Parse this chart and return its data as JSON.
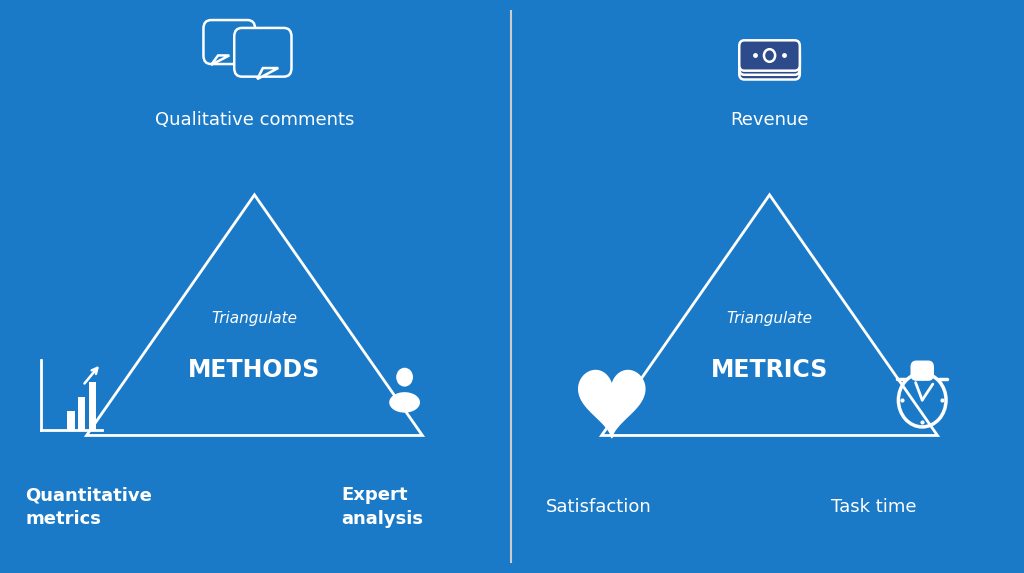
{
  "left_bg": "#1a7ac7",
  "right_bg": "#2d4a8a",
  "divider_color": "#cccccc",
  "text_color": "#ffffff",
  "triangle_color": "#ffffff",
  "left_title": "Triangulate",
  "left_subtitle": "METHODS",
  "right_title": "Triangulate",
  "right_subtitle": "METRICS",
  "left_top_label": "Qualitative comments",
  "left_bottom_left_label": "Quantitative\nmetrics",
  "left_bottom_right_label": "Expert\nanalysis",
  "right_top_label": "Revenue",
  "right_bottom_left_label": "Satisfaction",
  "right_bottom_right_label": "Task time",
  "fig_width": 10.24,
  "fig_height": 5.73
}
